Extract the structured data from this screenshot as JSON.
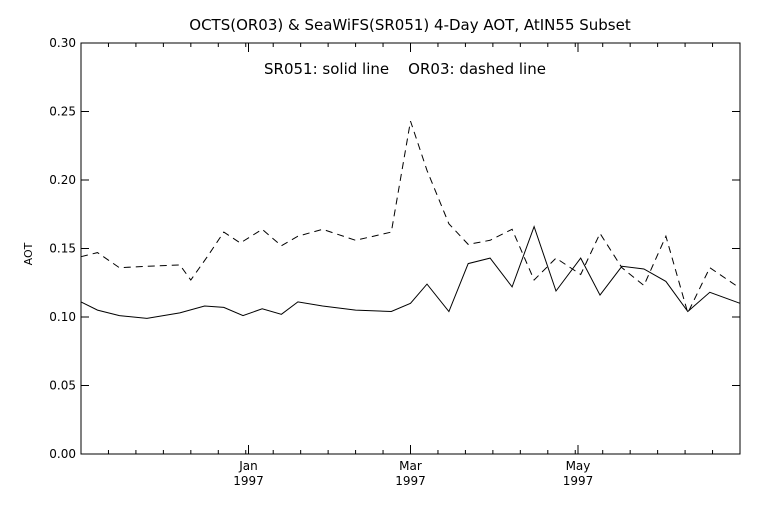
{
  "chart_data": {
    "type": "line",
    "title": "OCTS(OR03) & SeaWiFS(SR051) 4-Day AOT, AtIN55 Subset",
    "annotation": "SR051: solid line    OR03: dashed line",
    "xlabel": "",
    "ylabel": "AOT",
    "ylim": [
      0.0,
      0.3
    ],
    "y_ticks": [
      "0.00",
      "0.05",
      "0.10",
      "0.15",
      "0.20",
      "0.25",
      "0.30"
    ],
    "x_ticks": [
      {
        "label": "Jan",
        "year": "1997",
        "day": 61
      },
      {
        "label": "Mar",
        "year": "1997",
        "day": 120
      },
      {
        "label": "May",
        "year": "1997",
        "day": 181
      }
    ],
    "xlim": [
      0,
      240
    ],
    "series": [
      {
        "name": "SR051",
        "style": "solid",
        "x": [
          0,
          6,
          14,
          24,
          36,
          45,
          52,
          59,
          66,
          73,
          79,
          88,
          100,
          113,
          120,
          126,
          134,
          141,
          149,
          157,
          165,
          173,
          182,
          189,
          197,
          205,
          213,
          221,
          229,
          240
        ],
        "y": [
          0.111,
          0.105,
          0.101,
          0.099,
          0.103,
          0.108,
          0.107,
          0.101,
          0.106,
          0.102,
          0.111,
          0.108,
          0.105,
          0.104,
          0.11,
          0.124,
          0.104,
          0.139,
          0.143,
          0.122,
          0.166,
          0.119,
          0.143,
          0.116,
          0.137,
          0.135,
          0.126,
          0.104,
          0.118,
          0.11
        ]
      },
      {
        "name": "OR03",
        "style": "dashed",
        "x": [
          0,
          6,
          14,
          24,
          36,
          40,
          46,
          52,
          58,
          66,
          73,
          79,
          88,
          100,
          113,
          120,
          126,
          134,
          141,
          149,
          157,
          165,
          173,
          182,
          189,
          197,
          205,
          213,
          221,
          229,
          240
        ],
        "y": [
          0.144,
          0.147,
          0.136,
          0.137,
          0.138,
          0.127,
          0.144,
          0.162,
          0.154,
          0.164,
          0.152,
          0.159,
          0.164,
          0.156,
          0.162,
          0.243,
          0.207,
          0.168,
          0.153,
          0.156,
          0.164,
          0.127,
          0.143,
          0.131,
          0.161,
          0.136,
          0.123,
          0.159,
          0.103,
          0.136,
          0.121
        ]
      }
    ],
    "grid": false
  }
}
